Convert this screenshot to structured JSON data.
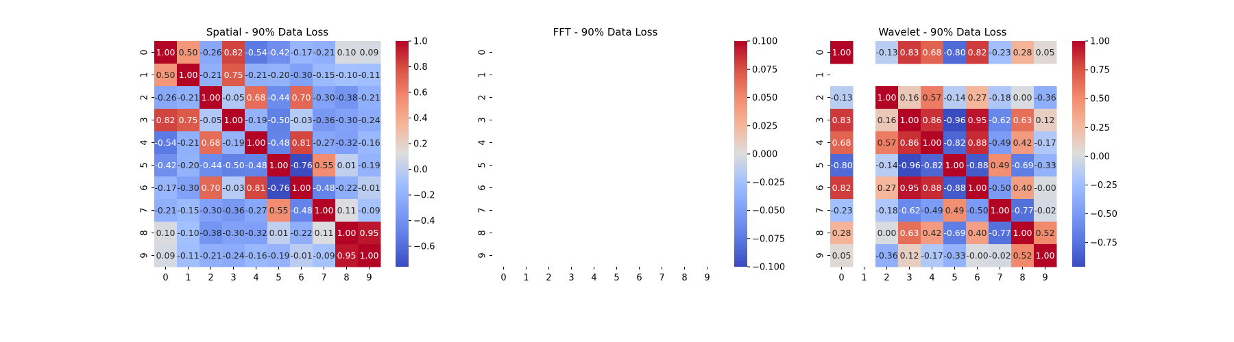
{
  "chart_data": [
    {
      "type": "heatmap",
      "title": "Spatial - 90% Data Loss",
      "x_categories": [
        "0",
        "1",
        "2",
        "3",
        "4",
        "5",
        "6",
        "7",
        "8",
        "9"
      ],
      "y_categories": [
        "0",
        "1",
        "2",
        "3",
        "4",
        "5",
        "6",
        "7",
        "8",
        "9"
      ],
      "values": [
        [
          1.0,
          0.5,
          -0.26,
          0.82,
          -0.54,
          -0.42,
          -0.17,
          -0.21,
          0.1,
          0.09
        ],
        [
          0.5,
          1.0,
          -0.21,
          0.75,
          -0.21,
          -0.2,
          -0.3,
          -0.15,
          -0.1,
          -0.11
        ],
        [
          -0.26,
          -0.21,
          1.0,
          -0.05,
          0.68,
          -0.44,
          0.7,
          -0.3,
          -0.38,
          -0.21
        ],
        [
          0.82,
          0.75,
          -0.05,
          1.0,
          -0.19,
          -0.5,
          -0.03,
          -0.36,
          -0.3,
          -0.24
        ],
        [
          -0.54,
          -0.21,
          0.68,
          -0.19,
          1.0,
          -0.48,
          0.81,
          -0.27,
          -0.32,
          -0.16
        ],
        [
          -0.42,
          -0.2,
          -0.44,
          -0.5,
          -0.48,
          1.0,
          -0.76,
          0.55,
          0.01,
          -0.19
        ],
        [
          -0.17,
          -0.3,
          0.7,
          -0.03,
          0.81,
          -0.76,
          1.0,
          -0.48,
          -0.22,
          -0.01
        ],
        [
          -0.21,
          -0.15,
          -0.3,
          -0.36,
          -0.27,
          0.55,
          -0.48,
          1.0,
          0.11,
          -0.09
        ],
        [
          0.1,
          -0.1,
          -0.38,
          -0.3,
          -0.32,
          0.01,
          -0.22,
          0.11,
          1.0,
          0.95
        ],
        [
          0.09,
          -0.11,
          -0.21,
          -0.24,
          -0.16,
          -0.19,
          -0.01,
          -0.09,
          0.95,
          1.0
        ]
      ],
      "colormap": "coolwarm",
      "vmin": -0.76,
      "vmax": 1.0,
      "colorbar_ticks": [
        "−0.6",
        "−0.4",
        "−0.2",
        "0.0",
        "0.2",
        "0.4",
        "0.6",
        "0.8",
        "1.0"
      ],
      "colorbar_tick_values": [
        -0.6,
        -0.4,
        -0.2,
        0.0,
        0.2,
        0.4,
        0.6,
        0.8,
        1.0
      ]
    },
    {
      "type": "heatmap",
      "title": "FFT - 90% Data Loss",
      "x_categories": [
        "0",
        "1",
        "2",
        "3",
        "4",
        "5",
        "6",
        "7",
        "8",
        "9"
      ],
      "y_categories": [
        "0",
        "1",
        "2",
        "3",
        "4",
        "5",
        "6",
        "7",
        "8",
        "9"
      ],
      "values": [
        [
          null,
          null,
          null,
          null,
          null,
          null,
          null,
          null,
          null,
          null
        ],
        [
          null,
          null,
          null,
          null,
          null,
          null,
          null,
          null,
          null,
          null
        ],
        [
          null,
          null,
          null,
          null,
          null,
          null,
          null,
          null,
          null,
          null
        ],
        [
          null,
          null,
          null,
          null,
          null,
          null,
          null,
          null,
          null,
          null
        ],
        [
          null,
          null,
          null,
          null,
          null,
          null,
          null,
          null,
          null,
          null
        ],
        [
          null,
          null,
          null,
          null,
          null,
          null,
          null,
          null,
          null,
          null
        ],
        [
          null,
          null,
          null,
          null,
          null,
          null,
          null,
          null,
          null,
          null
        ],
        [
          null,
          null,
          null,
          null,
          null,
          null,
          null,
          null,
          null,
          null
        ],
        [
          null,
          null,
          null,
          null,
          null,
          null,
          null,
          null,
          null,
          null
        ],
        [
          null,
          null,
          null,
          null,
          null,
          null,
          null,
          null,
          null,
          null
        ]
      ],
      "colormap": "coolwarm",
      "vmin": -0.1,
      "vmax": 0.1,
      "colorbar_ticks": [
        "−0.100",
        "−0.075",
        "−0.050",
        "−0.025",
        "0.000",
        "0.025",
        "0.050",
        "0.075",
        "0.100"
      ],
      "colorbar_tick_values": [
        -0.1,
        -0.075,
        -0.05,
        -0.025,
        0.0,
        0.025,
        0.05,
        0.075,
        0.1
      ]
    },
    {
      "type": "heatmap",
      "title": "Wavelet - 90% Data Loss",
      "x_categories": [
        "0",
        "1",
        "2",
        "3",
        "4",
        "5",
        "6",
        "7",
        "8",
        "9"
      ],
      "y_categories": [
        "0",
        "1",
        "2",
        "3",
        "4",
        "5",
        "6",
        "7",
        "8",
        "9"
      ],
      "values": [
        [
          1.0,
          null,
          -0.13,
          0.83,
          0.68,
          -0.8,
          0.82,
          -0.23,
          0.28,
          0.05
        ],
        [
          null,
          null,
          null,
          null,
          null,
          null,
          null,
          null,
          null,
          null
        ],
        [
          -0.13,
          null,
          1.0,
          0.16,
          0.57,
          -0.14,
          0.27,
          -0.18,
          0.0,
          -0.36
        ],
        [
          0.83,
          null,
          0.16,
          1.0,
          0.86,
          -0.96,
          0.95,
          -0.62,
          0.63,
          0.12
        ],
        [
          0.68,
          null,
          0.57,
          0.86,
          1.0,
          -0.82,
          0.88,
          -0.49,
          0.42,
          -0.17
        ],
        [
          -0.8,
          null,
          -0.14,
          -0.96,
          -0.82,
          1.0,
          -0.88,
          0.49,
          -0.69,
          -0.33
        ],
        [
          0.82,
          null,
          0.27,
          0.95,
          0.88,
          -0.88,
          1.0,
          -0.5,
          0.4,
          -0.0
        ],
        [
          -0.23,
          null,
          -0.18,
          -0.62,
          -0.49,
          0.49,
          -0.5,
          1.0,
          -0.77,
          -0.02
        ],
        [
          0.28,
          null,
          0.0,
          0.63,
          0.42,
          -0.69,
          0.4,
          -0.77,
          1.0,
          0.52
        ],
        [
          0.05,
          null,
          -0.36,
          0.12,
          -0.17,
          -0.33,
          -0.0,
          -0.02,
          0.52,
          1.0
        ]
      ],
      "colormap": "coolwarm",
      "vmin": -0.96,
      "vmax": 1.0,
      "colorbar_ticks": [
        "−0.75",
        "−0.50",
        "−0.25",
        "0.00",
        "0.25",
        "0.50",
        "0.75",
        "1.00"
      ],
      "colorbar_tick_values": [
        -0.75,
        -0.5,
        -0.25,
        0.0,
        0.25,
        0.5,
        0.75,
        1.0
      ]
    }
  ]
}
